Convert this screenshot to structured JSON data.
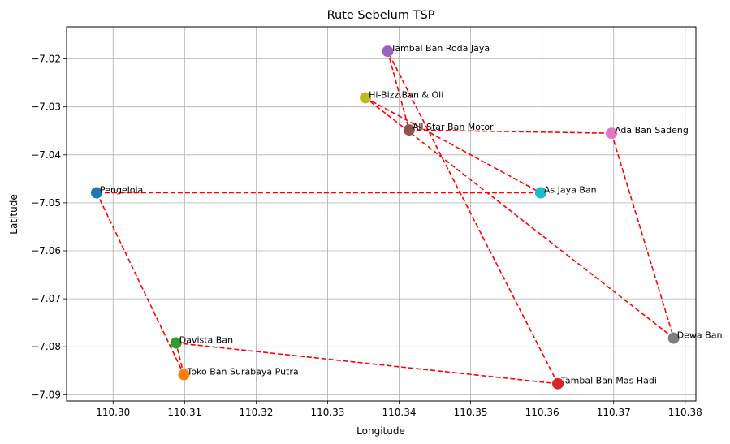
{
  "chart_data": {
    "type": "scatter",
    "title": "Rute Sebelum TSP",
    "xlabel": "Longitude",
    "ylabel": "Latitude",
    "xlim": [
      110.2935,
      110.3815
    ],
    "ylim": [
      -7.0913,
      -7.0133
    ],
    "xticks": [
      "110.30",
      "110.31",
      "110.32",
      "110.33",
      "110.34",
      "110.35",
      "110.36",
      "110.37",
      "110.38"
    ],
    "yticks": [
      "-7.02",
      "-7.03",
      "-7.04",
      "-7.05",
      "-7.06",
      "-7.07",
      "-7.08",
      "-7.09"
    ],
    "xtick_values": [
      110.3,
      110.31,
      110.32,
      110.33,
      110.34,
      110.35,
      110.36,
      110.37,
      110.38
    ],
    "ytick_values": [
      -7.02,
      -7.03,
      -7.04,
      -7.05,
      -7.06,
      -7.07,
      -7.08,
      -7.09
    ],
    "grid": true,
    "route_color": "#ff0000",
    "points": [
      {
        "name": "Pengelola",
        "x": 110.2977,
        "y": -7.0479,
        "color": "#1f77b4"
      },
      {
        "name": "Toko Ban Surabaya Putra",
        "x": 110.3099,
        "y": -7.0858,
        "color": "#ff7f0e"
      },
      {
        "name": "Davista Ban",
        "x": 110.3088,
        "y": -7.0792,
        "color": "#2ca02c"
      },
      {
        "name": "Tambal Ban Mas Hadi",
        "x": 110.3622,
        "y": -7.0877,
        "color": "#d62728"
      },
      {
        "name": "Tambal Ban Roda Jaya",
        "x": 110.3384,
        "y": -7.0184,
        "color": "#9467bd"
      },
      {
        "name": "All Star Ban Motor",
        "x": 110.3414,
        "y": -7.0348,
        "color": "#8c564b"
      },
      {
        "name": "Ada Ban Sadeng",
        "x": 110.3697,
        "y": -7.0355,
        "color": "#e377c2"
      },
      {
        "name": "Dewa Ban",
        "x": 110.3784,
        "y": -7.0782,
        "color": "#7f7f7f"
      },
      {
        "name": "Hi-Bizz Ban & Oli",
        "x": 110.3353,
        "y": -7.0281,
        "color": "#bcbd22"
      },
      {
        "name": "As Jaya Ban",
        "x": 110.3598,
        "y": -7.0479,
        "color": "#17becf"
      }
    ],
    "route_order": [
      0,
      1,
      2,
      3,
      4,
      5,
      6,
      7,
      8,
      9,
      0
    ]
  }
}
